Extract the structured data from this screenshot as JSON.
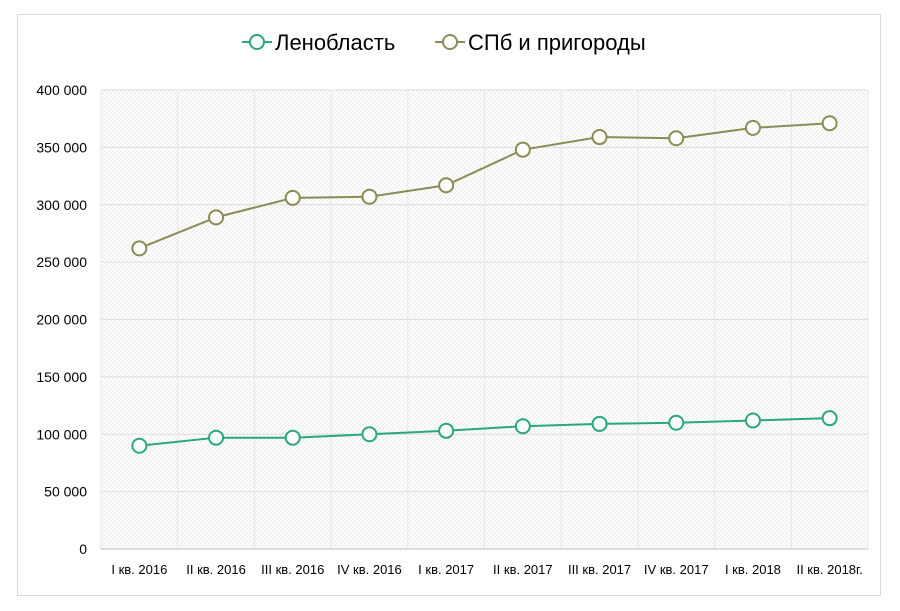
{
  "chart_data": {
    "type": "line",
    "title": "",
    "xlabel": "",
    "ylabel": "",
    "categories": [
      "I кв. 2016",
      "II кв. 2016",
      "III кв. 2016",
      "IV кв. 2016",
      "I кв. 2017",
      "II кв. 2017",
      "III кв. 2017",
      "IV кв. 2017",
      "I кв. 2018",
      "II кв. 2018г."
    ],
    "ylim": [
      0,
      400000
    ],
    "yticks": [
      0,
      50000,
      100000,
      150000,
      200000,
      250000,
      300000,
      350000,
      400000
    ],
    "ytick_labels": [
      "0",
      "50 000",
      "100 000",
      "150 000",
      "200 000",
      "250 000",
      "300 000",
      "350 000",
      "400 000"
    ],
    "grid": true,
    "legend_position": "top",
    "series": [
      {
        "name": "Ленобласть",
        "color": "#2aa876",
        "values": [
          90000,
          97000,
          97000,
          100000,
          103000,
          107000,
          109000,
          110000,
          112000,
          114000
        ]
      },
      {
        "name": "СПб и пригороды",
        "color": "#8b8b55",
        "values": [
          262000,
          289000,
          306000,
          307000,
          317000,
          348000,
          359000,
          358000,
          367000,
          371000
        ]
      }
    ]
  }
}
